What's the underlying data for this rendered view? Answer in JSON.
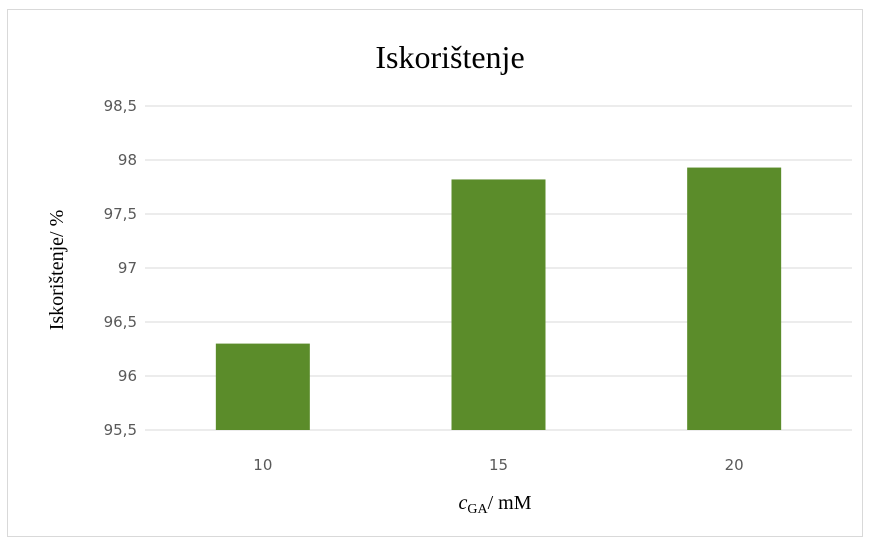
{
  "chart_data": {
    "type": "bar",
    "title": "Iskorištenje",
    "categories": [
      "10",
      "15",
      "20"
    ],
    "values": [
      96.3,
      97.82,
      97.93
    ],
    "ylabel": "Iskorištenje/ %",
    "xlabel": {
      "main": "c",
      "subscript": "GA",
      "suffix": "/ mM"
    },
    "ylim": [
      95.5,
      98.5
    ],
    "yticks": [
      "95,5",
      "96",
      "96,5",
      "97",
      "97,5",
      "98",
      "98,5"
    ],
    "grid": true,
    "legend": "none",
    "bar_color": "#5b8c2a"
  }
}
